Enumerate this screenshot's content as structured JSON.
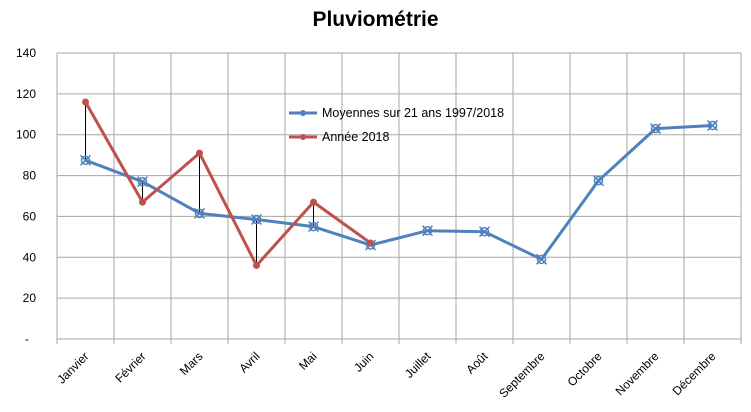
{
  "chart_data": {
    "type": "line",
    "title": "Pluviométrie",
    "xlabel": "",
    "ylabel": "",
    "categories": [
      "Janvier",
      "Février",
      "Mars",
      "Avril",
      "Mai",
      "Juin",
      "Juillet",
      "Août",
      "Septembre",
      "Octobre",
      "Novembre",
      "Décembre"
    ],
    "ylim": [
      0,
      140
    ],
    "yticks": [
      140,
      120,
      100,
      80,
      60,
      40,
      20
    ],
    "zero_tick_label": "-",
    "grid": true,
    "legend_position": "center",
    "series": [
      {
        "name": "Moyennes sur 21 ans 1997/2018",
        "color": "#4f81bd",
        "marker": "x-circle",
        "values": [
          87.5,
          77,
          61.5,
          58.5,
          55,
          46,
          53,
          52.5,
          39,
          77.5,
          103,
          104.5
        ]
      },
      {
        "name": "Année 2018",
        "color": "#c0504d",
        "marker": "dot",
        "values": [
          116,
          67,
          91,
          36,
          67,
          47,
          null,
          null,
          null,
          null,
          null,
          null
        ]
      }
    ],
    "drop_lines": true
  }
}
